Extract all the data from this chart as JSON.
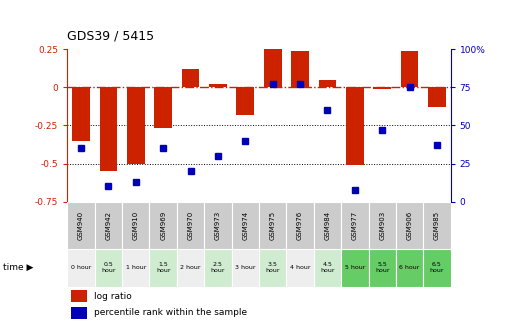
{
  "title": "GDS39 / 5415",
  "samples": [
    "GSM940",
    "GSM942",
    "GSM910",
    "GSM969",
    "GSM970",
    "GSM973",
    "GSM974",
    "GSM975",
    "GSM976",
    "GSM984",
    "GSM977",
    "GSM903",
    "GSM906",
    "GSM985"
  ],
  "time_labels": [
    "0 hour",
    "0.5\nhour",
    "1 hour",
    "1.5\nhour",
    "2 hour",
    "2.5\nhour",
    "3 hour",
    "3.5\nhour",
    "4 hour",
    "4.5\nhour",
    "5 hour",
    "5.5\nhour",
    "6 hour",
    "6.5\nhour"
  ],
  "time_colors": [
    "#eeeeee",
    "#d0ecd0",
    "#eeeeee",
    "#d0ecd0",
    "#eeeeee",
    "#d0ecd0",
    "#eeeeee",
    "#d0ecd0",
    "#eeeeee",
    "#d0ecd0",
    "#66cc66",
    "#66cc66",
    "#66cc66",
    "#66cc66"
  ],
  "log_ratio": [
    -0.35,
    -0.55,
    -0.5,
    -0.27,
    0.12,
    0.02,
    -0.18,
    0.26,
    0.24,
    0.05,
    -0.51,
    -0.01,
    0.24,
    -0.13
  ],
  "percentile": [
    35,
    10,
    13,
    35,
    20,
    30,
    40,
    77,
    77,
    60,
    8,
    47,
    75,
    37
  ],
  "ylim_left": [
    -0.75,
    0.25
  ],
  "ylim_right": [
    0,
    100
  ],
  "yticks_left": [
    0.25,
    0,
    -0.25,
    -0.5,
    -0.75
  ],
  "ytick_labels_left": [
    "0.25",
    "0",
    "-0.25",
    "-0.5",
    "-0.75"
  ],
  "yticks_right": [
    100,
    75,
    50,
    25,
    0
  ],
  "ytick_labels_right": [
    "100%",
    "75",
    "50",
    "25",
    "0"
  ],
  "bar_color": "#cc2200",
  "dot_color": "#0000bb",
  "bg_color": "#ffffff",
  "sample_bg": "#cccccc",
  "legend_items": [
    "log ratio",
    "percentile rank within the sample"
  ]
}
